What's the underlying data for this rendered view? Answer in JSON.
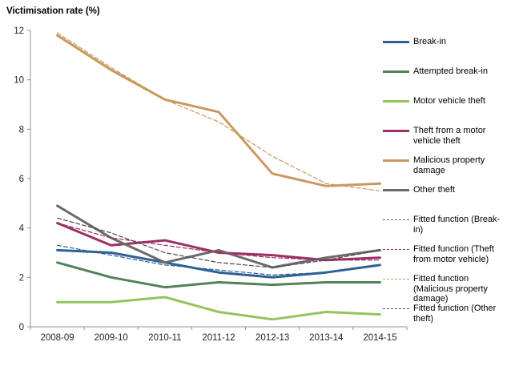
{
  "chart_data": {
    "type": "line",
    "title": "Victimisation rate (%)",
    "categories": [
      "2008-09",
      "2009-10",
      "2010-11",
      "2011-12",
      "2012-13",
      "2013-14",
      "2014-15"
    ],
    "ylim": [
      0,
      12
    ],
    "ytick_step": 2,
    "yticks": [
      0,
      2,
      4,
      6,
      8,
      10,
      12
    ],
    "grid": false,
    "legend_position": "right",
    "series": [
      {
        "id": "break-in",
        "name": "Break-in",
        "style": "solid",
        "color": "#2e6095",
        "values": [
          3.1,
          3.0,
          2.6,
          2.2,
          2.0,
          2.2,
          2.5
        ]
      },
      {
        "id": "attempted-break-in",
        "name": "Attempted break-in",
        "style": "solid",
        "color": "#548257",
        "values": [
          2.6,
          2.0,
          1.6,
          1.8,
          1.7,
          1.8,
          1.8
        ]
      },
      {
        "id": "motor-vehicle-theft",
        "name": "Motor vehicle theft",
        "style": "solid",
        "color": "#94c45c",
        "values": [
          1.0,
          1.0,
          1.2,
          0.6,
          0.3,
          0.6,
          0.5
        ]
      },
      {
        "id": "theft-from-motor-vehicle",
        "name": "Theft from a motor vehicle theft",
        "style": "solid",
        "color": "#9e2f62",
        "values": [
          4.2,
          3.3,
          3.5,
          3.0,
          2.9,
          2.7,
          2.8
        ]
      },
      {
        "id": "malicious-property-damage",
        "name": "Malicious property damage",
        "style": "solid",
        "color": "#c9985f",
        "values": [
          11.8,
          10.4,
          9.2,
          8.7,
          6.2,
          5.7,
          5.8
        ]
      },
      {
        "id": "other-theft",
        "name": "Other theft",
        "style": "solid",
        "color": "#6b6b6b",
        "values": [
          4.9,
          3.6,
          2.6,
          3.1,
          2.4,
          2.8,
          3.1
        ]
      },
      {
        "id": "fitted-break-in",
        "name": "Fitted function (Break-in)",
        "style": "dashed",
        "color": "#2e6095",
        "values": [
          3.3,
          2.9,
          2.5,
          2.3,
          2.1,
          2.2,
          2.5
        ]
      },
      {
        "id": "fitted-theft-from-motor-vehicle",
        "name": "Fitted function (Theft from motor vehicle)",
        "style": "dashed",
        "color": "#9e2f62",
        "values": [
          4.2,
          3.6,
          3.3,
          3.0,
          2.8,
          2.7,
          2.7
        ]
      },
      {
        "id": "fitted-malicious-property-damage",
        "name": "Fitted function (Malicious property damage)",
        "style": "dashed",
        "color": "#c9985f",
        "values": [
          11.9,
          10.5,
          9.2,
          8.3,
          6.9,
          5.8,
          5.5
        ]
      },
      {
        "id": "fitted-other-theft",
        "name": "Fitted function (Other theft)",
        "style": "dashed",
        "color": "#4d4d4d",
        "values": [
          4.4,
          3.8,
          3.0,
          2.6,
          2.4,
          2.7,
          3.1
        ]
      }
    ],
    "axis_color": "#909090",
    "tick_label_color": "#262626"
  }
}
